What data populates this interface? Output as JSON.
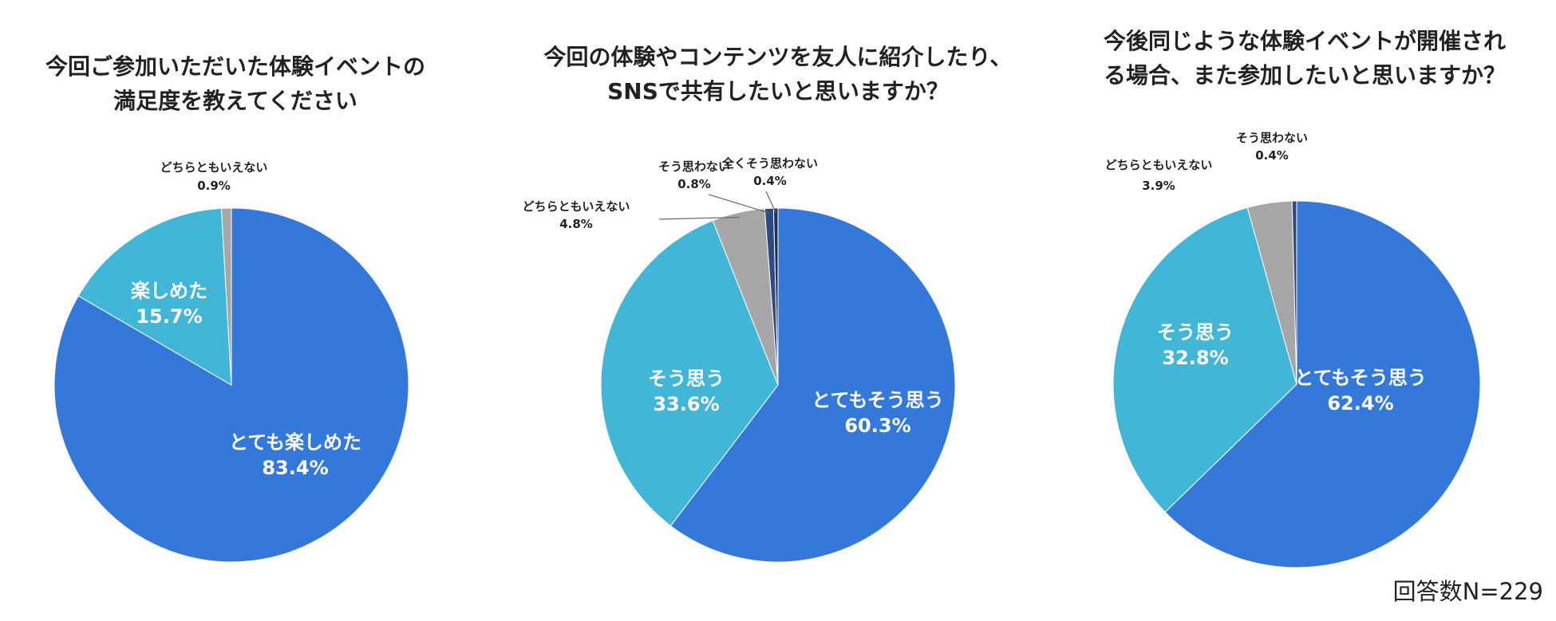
{
  "colors": {
    "very_positive": "#3479D9",
    "positive": "#42B6D6",
    "neutral": "#A6A6A6",
    "negative": "#2E4A82",
    "very_negative": "#1F2F5C",
    "leader_line": "#666666"
  },
  "chart_data": [
    {
      "type": "pie",
      "title": [
        "今回ご参加いただいた体験イベントの",
        "満足度を教えてください"
      ],
      "series": [
        {
          "label": "とても楽しめた",
          "value": 83.4,
          "value_label": "83.4%"
        },
        {
          "label": "楽しめた",
          "value": 15.7,
          "value_label": "15.7%"
        },
        {
          "label": "どちらともいえない",
          "value": 0.9,
          "value_label": "0.9%"
        }
      ]
    },
    {
      "type": "pie",
      "title": [
        "今回の体験やコンテンツを友人に紹介したり、",
        "SNSで共有したいと思いますか？"
      ],
      "series": [
        {
          "label": "とてもそう思う",
          "value": 60.3,
          "value_label": "60.3%"
        },
        {
          "label": "そう思う",
          "value": 33.6,
          "value_label": "33.6%"
        },
        {
          "label": "どちらともいえない",
          "value": 4.8,
          "value_label": "4.8%"
        },
        {
          "label": "そう思わない",
          "value": 0.8,
          "value_label": "0.8%"
        },
        {
          "label": "全くそう思わない",
          "value": 0.4,
          "value_label": "0.4%"
        }
      ]
    },
    {
      "type": "pie",
      "title": [
        "今後同じような体験イベントが開催され",
        "る場合、また参加したいと思いますか？"
      ],
      "series": [
        {
          "label": "とてもそう思う",
          "value": 62.4,
          "value_label": "62.4%"
        },
        {
          "label": "そう思う",
          "value": 32.8,
          "value_label": "32.8%"
        },
        {
          "label": "どちらともいえない",
          "value": 3.9,
          "value_label": "3.9%"
        },
        {
          "label": "そう思わない",
          "value": 0.4,
          "value_label": "0.4%"
        }
      ]
    }
  ],
  "footer": {
    "respondents": "回答数N=229"
  }
}
